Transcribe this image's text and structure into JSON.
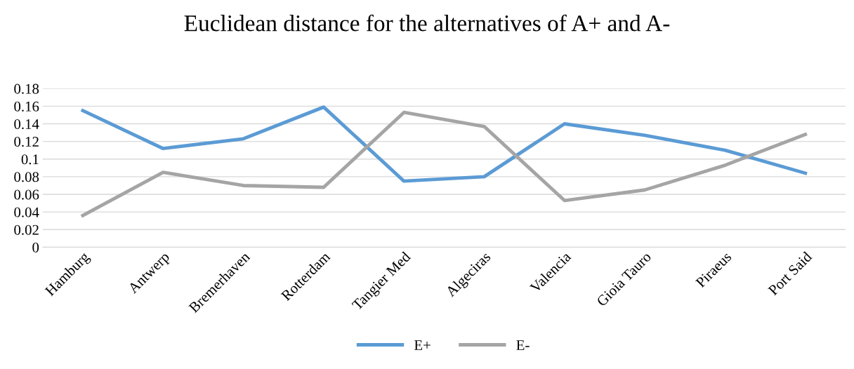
{
  "chart_data": {
    "type": "line",
    "title": "Euclidean distance for the alternatives of A+ and A-",
    "categories": [
      "Hamburg",
      "Antwerp",
      "Bremerhaven",
      "Rotterdam",
      "Tangier Med",
      "Algeciras",
      "Valencia",
      "Gioia Tauro",
      "Piraeus",
      "Port Said"
    ],
    "series": [
      {
        "name": "E+",
        "color": "#5b9bd5",
        "values": [
          0.155,
          0.112,
          0.123,
          0.159,
          0.075,
          0.08,
          0.14,
          0.127,
          0.11,
          0.084
        ]
      },
      {
        "name": "E-",
        "color": "#a5a5a5",
        "values": [
          0.036,
          0.085,
          0.07,
          0.068,
          0.153,
          0.137,
          0.053,
          0.065,
          0.093,
          0.128
        ]
      }
    ],
    "ylim": [
      0,
      0.18
    ],
    "yticks": [
      0,
      0.02,
      0.04,
      0.06,
      0.08,
      0.1,
      0.12,
      0.14,
      0.16,
      0.18
    ],
    "grid": "y",
    "legend": "bottom",
    "marker": "none",
    "line_style": "solid"
  }
}
